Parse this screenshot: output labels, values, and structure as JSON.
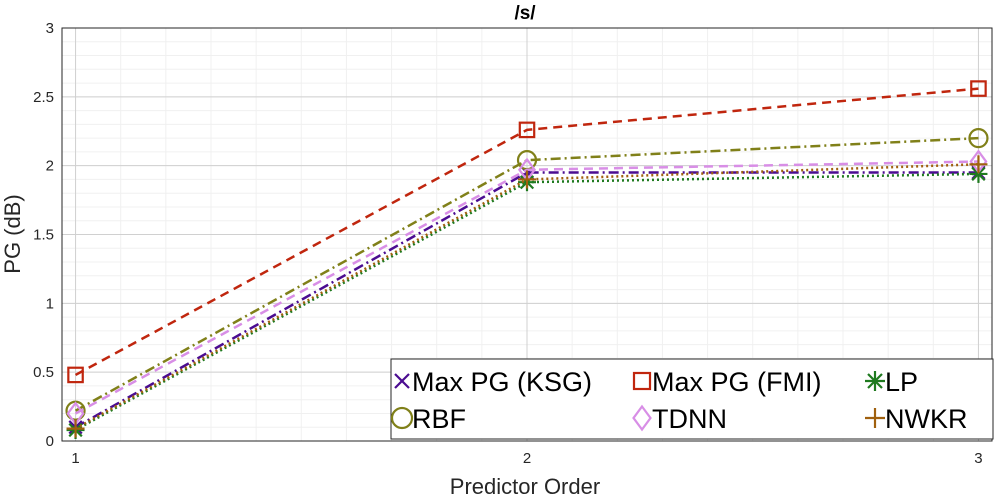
{
  "chart_data": {
    "type": "line",
    "title": "/s/",
    "xlabel": "Predictor Order",
    "ylabel": "PG (dB)",
    "x": [
      1,
      2,
      3
    ],
    "xlim": [
      0.97,
      3.03
    ],
    "ylim": [
      0,
      3
    ],
    "x_ticks": [
      1,
      2,
      3
    ],
    "x_tick_labels": [
      "1",
      "2",
      "3"
    ],
    "y_ticks": [
      0,
      0.5,
      1,
      1.5,
      2,
      2.5,
      3
    ],
    "y_tick_labels": [
      "0",
      "0.5",
      "1",
      "1.5",
      "2",
      "2.5",
      "3"
    ],
    "grid": true,
    "minor_grid": true,
    "legend_position": "bottom-right",
    "series": [
      {
        "name": "Max PG (KSG)",
        "values": [
          0.1,
          1.95,
          1.95
        ],
        "color": "#4b0c91",
        "line_style": "dashdot",
        "marker": "x"
      },
      {
        "name": "Max PG (FMI)",
        "values": [
          0.48,
          2.26,
          2.56
        ],
        "color": "#c0260e",
        "line_style": "dashed",
        "marker": "square"
      },
      {
        "name": "LP",
        "values": [
          0.08,
          1.88,
          1.94
        ],
        "color": "#1f7a1f",
        "line_style": "dotted",
        "marker": "asterisk"
      },
      {
        "name": "RBF",
        "values": [
          0.22,
          2.04,
          2.2
        ],
        "color": "#808019",
        "line_style": "dashdot",
        "marker": "circle"
      },
      {
        "name": "TDNN",
        "values": [
          0.2,
          1.97,
          2.03
        ],
        "color": "#d88ee6",
        "line_style": "dashed",
        "marker": "diamond"
      },
      {
        "name": "NWKR",
        "values": [
          0.09,
          1.9,
          2.01
        ],
        "color": "#a0600e",
        "line_style": "dotted",
        "marker": "plus"
      }
    ]
  }
}
